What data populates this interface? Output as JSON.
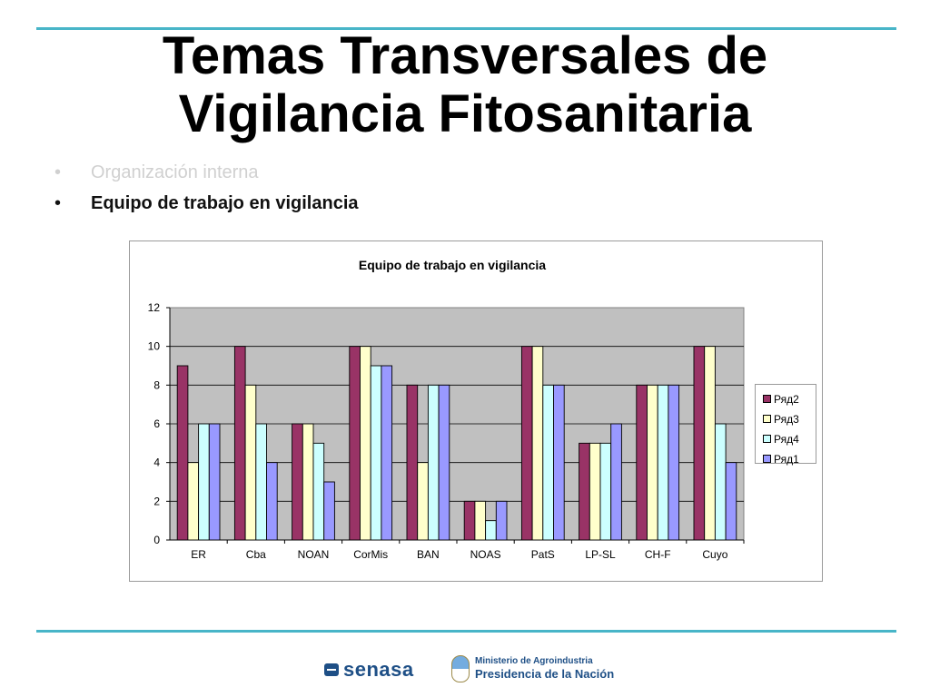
{
  "slide": {
    "title_line1": "Temas Transversales de",
    "title_line2": "Vigilancia Fitosanitaria",
    "bullets": [
      {
        "text": "Organización interna",
        "state": "dim"
      },
      {
        "text": "Equipo de trabajo en vigilancia",
        "state": "active"
      }
    ],
    "bullet_glyph": "•"
  },
  "chart_data": {
    "type": "bar",
    "title": "Equipo de trabajo en vigilancia",
    "categories": [
      "ER",
      "Cba",
      "NOAN",
      "CorMis",
      "BAN",
      "NOAS",
      "PatS",
      "LP-SL",
      "CH-F",
      "Cuyo"
    ],
    "series": [
      {
        "name": "Ряд2",
        "color": "#993366",
        "values": [
          9,
          10,
          6,
          10,
          8,
          2,
          10,
          5,
          8,
          10
        ]
      },
      {
        "name": "Ряд3",
        "color": "#ffffcc",
        "values": [
          4,
          8,
          6,
          10,
          4,
          2,
          10,
          5,
          8,
          10
        ]
      },
      {
        "name": "Ряд4",
        "color": "#ccffff",
        "values": [
          6,
          6,
          5,
          9,
          8,
          1,
          8,
          5,
          8,
          6
        ]
      },
      {
        "name": "Ряд1",
        "color": "#9999ff",
        "values": [
          6,
          4,
          3,
          9,
          8,
          2,
          8,
          6,
          8,
          4
        ]
      }
    ],
    "ylim": [
      0,
      12
    ],
    "yticks": [
      "0",
      "2",
      "4",
      "6",
      "8",
      "10",
      "12"
    ],
    "grid": true,
    "plot_background": "#c0c0c0",
    "legend_position": "right"
  },
  "footer": {
    "senasa_logo_text": "senasa",
    "ministry_line1": "Ministerio de Agroindustria",
    "ministry_line2": "Presidencia de la Nación"
  }
}
